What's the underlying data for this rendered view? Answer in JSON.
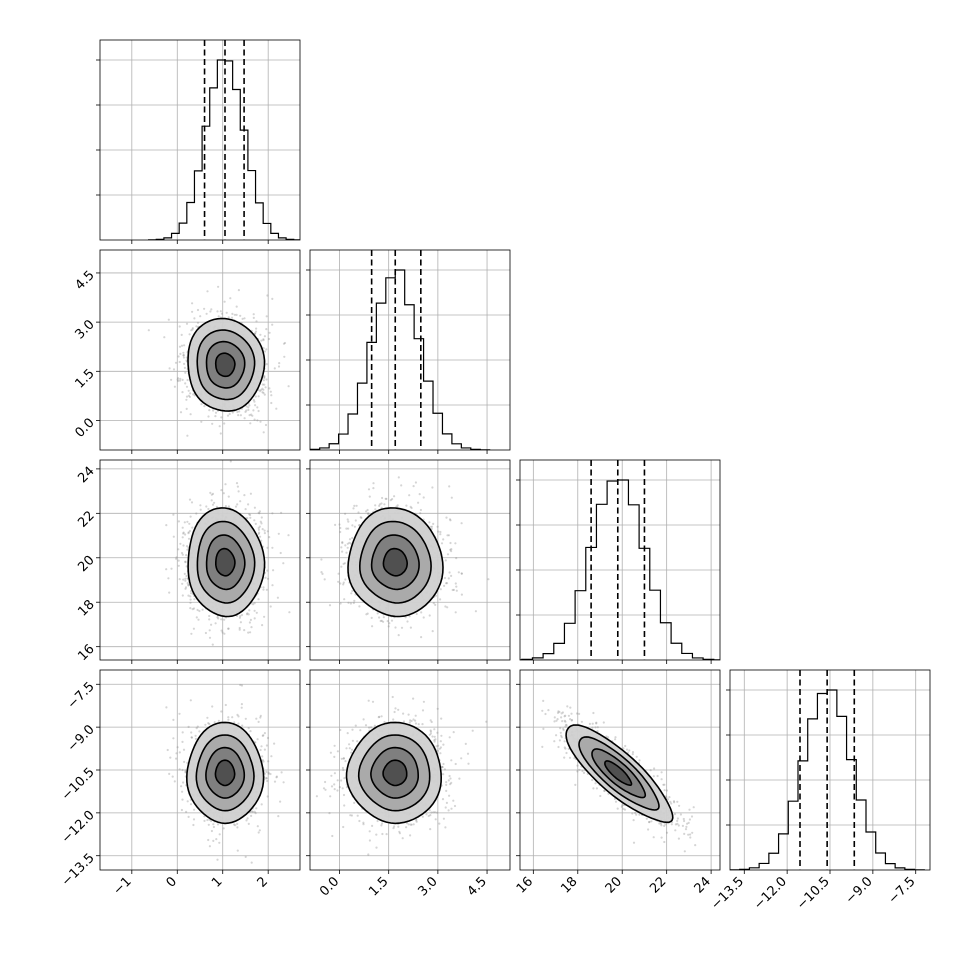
{
  "chart_data": {
    "type": "corner",
    "title": "",
    "grid": true,
    "params": [
      {
        "index": 0,
        "label": "",
        "mean": 1.05,
        "sd": 0.42,
        "range": [
          -1.7,
          2.7
        ],
        "ticks": [
          -1,
          0,
          1,
          2
        ],
        "tick_labels": [
          "−1",
          "0",
          "1",
          "2"
        ],
        "quantiles": [
          0.6,
          1.05,
          1.47
        ]
      },
      {
        "index": 1,
        "label": "",
        "mean": 1.7,
        "sd": 0.72,
        "range": [
          -0.9,
          5.2
        ],
        "ticks": [
          0.0,
          1.5,
          3.0,
          4.5
        ],
        "tick_labels": [
          "0.0",
          "1.5",
          "3.0",
          "4.5"
        ],
        "quantiles": [
          0.98,
          1.7,
          2.48
        ]
      },
      {
        "index": 2,
        "label": "",
        "mean": 19.8,
        "sd": 1.2,
        "range": [
          15.4,
          24.4
        ],
        "ticks": [
          16,
          18,
          20,
          22,
          24
        ],
        "tick_labels": [
          "16",
          "18",
          "20",
          "22",
          "24"
        ],
        "quantiles": [
          18.6,
          19.8,
          21.0
        ]
      },
      {
        "index": 3,
        "label": "",
        "mean": -10.6,
        "sd": 0.85,
        "range": [
          -14.0,
          -7.0
        ],
        "ticks": [
          -13.5,
          -12.0,
          -10.5,
          -9.0,
          -7.5
        ],
        "tick_labels": [
          "−13.5",
          "−12.0",
          "−10.5",
          "−9.0",
          "−7.5"
        ],
        "quantiles": [
          -11.55,
          -10.6,
          -9.65
        ]
      }
    ],
    "correlations": [
      [
        0,
        1,
        0.0
      ],
      [
        0,
        2,
        0.0
      ],
      [
        0,
        3,
        0.0
      ],
      [
        1,
        2,
        0.0
      ],
      [
        1,
        3,
        0.0
      ],
      [
        2,
        3,
        -0.85
      ]
    ],
    "contour_levels_sigma": [
      0.5,
      1.0,
      1.5,
      2.0
    ],
    "histogram_bins": 20
  }
}
